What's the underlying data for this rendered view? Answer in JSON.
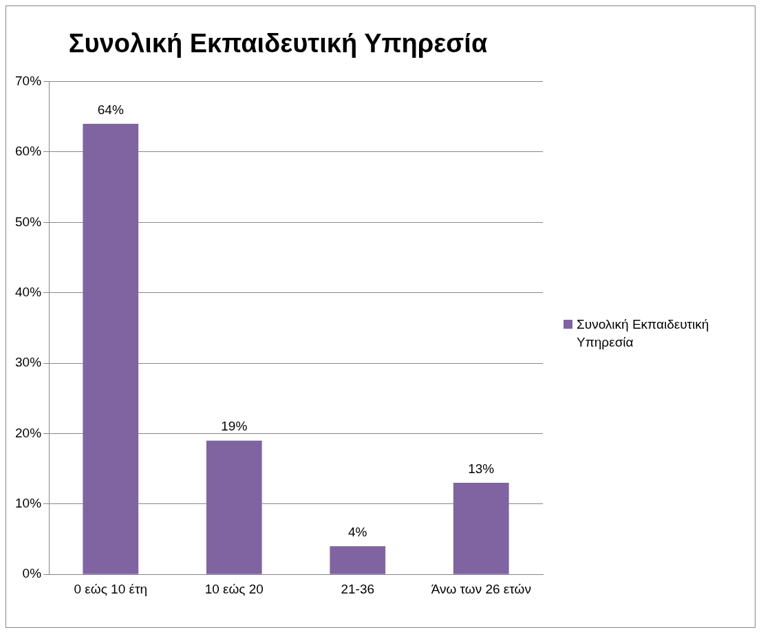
{
  "chart_data": {
    "type": "bar",
    "title": "Συνολική Εκπαιδευτική Υπηρεσία",
    "categories": [
      "0 εώς 10 έτη",
      "10 εώς 20",
      "21-36",
      "Άνω των 26 ετών"
    ],
    "series": [
      {
        "name": "Συνολική Εκπαιδευτική Υπηρεσία",
        "color": "#8064a2",
        "values": [
          64,
          19,
          4,
          13
        ],
        "value_labels": [
          "64%",
          "19%",
          "4%",
          "13%"
        ]
      }
    ],
    "ylim": [
      0,
      70
    ],
    "yticks": [
      {
        "value": 0,
        "label": "0%"
      },
      {
        "value": 10,
        "label": "10%"
      },
      {
        "value": 20,
        "label": "20%"
      },
      {
        "value": 30,
        "label": "30%"
      },
      {
        "value": 40,
        "label": "40%"
      },
      {
        "value": 50,
        "label": "50%"
      },
      {
        "value": 60,
        "label": "60%"
      },
      {
        "value": 70,
        "label": "70%"
      }
    ],
    "grid": "y",
    "legend": "right"
  }
}
